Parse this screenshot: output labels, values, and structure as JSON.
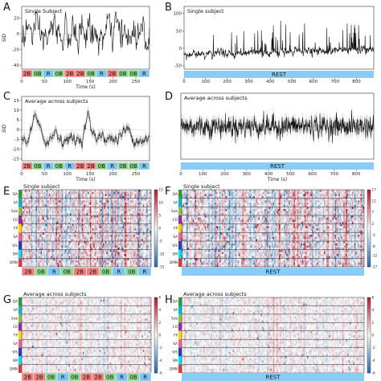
{
  "colors": {
    "2B": "#f08080",
    "0B": "#8fd68f",
    "R": "#7fc4f0",
    "rest": "#87cdf5",
    "line": "#111111",
    "band": "#b8b8b8"
  },
  "networks": [
    {
      "name": "DA",
      "color": "#2ca02c"
    },
    {
      "name": "VA",
      "color": "#00bcd4"
    },
    {
      "name": "Sub",
      "color": "#8bc34a"
    },
    {
      "name": "CO",
      "color": "#9c27b0"
    },
    {
      "name": "FP",
      "color": "#ffd600"
    },
    {
      "name": "SA",
      "color": "#f06292"
    },
    {
      "name": "VIS",
      "color": "#1e3fbf"
    },
    {
      "name": "SM",
      "color": "#00e5ff"
    },
    {
      "name": "DMN",
      "color": "#e53935"
    }
  ],
  "chart_data": [
    {
      "panel": "A",
      "type": "line",
      "title": "Single Subject",
      "xlabel": "Time (s)",
      "ylabel": "SID",
      "xlim": [
        0,
        280
      ],
      "ylim": [
        -45,
        35
      ],
      "xticks": [
        0,
        50,
        100,
        150,
        200,
        250
      ],
      "yticks": [
        -40,
        -20,
        0,
        20
      ],
      "blocks": [
        "2B",
        "0B",
        "R",
        "0B",
        "2B",
        "2B",
        "0B",
        "R",
        "2B",
        "0B",
        "0B",
        "R"
      ]
    },
    {
      "panel": "B",
      "type": "line",
      "title": "Single subject",
      "xlabel": "",
      "ylabel": "",
      "xlim": [
        0,
        880
      ],
      "ylim": [
        -60,
        120
      ],
      "xticks": [
        0,
        100,
        200,
        300,
        400,
        500,
        600,
        700,
        800
      ],
      "yticks": [
        -50,
        0,
        50,
        100
      ],
      "rest_label": "REST"
    },
    {
      "panel": "C",
      "type": "line",
      "title": "Average across subjects",
      "xlabel": "Time (s)",
      "ylabel": "SID",
      "xlim": [
        0,
        280
      ],
      "ylim": [
        -16,
        17
      ],
      "xticks": [
        0,
        50,
        100,
        150,
        200,
        250
      ],
      "yticks": [
        -15,
        -10,
        -5,
        0,
        5,
        10,
        15
      ],
      "blocks": [
        "2B",
        "0B",
        "R",
        "0B",
        "R",
        "2B",
        "2B",
        "0B",
        "R",
        "0B",
        "0B",
        "R"
      ]
    },
    {
      "panel": "D",
      "type": "line",
      "title": "Average across subjects",
      "xlabel": "Time (s)",
      "ylabel": "",
      "xlim": [
        0,
        880
      ],
      "ylim": [
        -45,
        45
      ],
      "xticks": [
        0,
        100,
        200,
        300,
        400,
        500,
        600,
        700,
        800
      ],
      "yticks": [],
      "rest_label": "REST"
    },
    {
      "panel": "E",
      "type": "heatmap",
      "title": "Single subject",
      "color_range": [
        -15,
        15
      ],
      "colorbar_ticks": [
        15,
        10,
        5,
        0,
        -5,
        -10,
        -15
      ],
      "blocks": [
        "2B",
        "0B",
        "R",
        "0B",
        "2B",
        "2B",
        "0B",
        "R",
        "0B",
        "R"
      ]
    },
    {
      "panel": "F",
      "type": "heatmap",
      "title": "Single subject",
      "color_range": [
        -17,
        17
      ],
      "colorbar_ticks": [
        17,
        12,
        7,
        2,
        -3,
        -8,
        -12,
        -17
      ],
      "rest_label": "REST"
    },
    {
      "panel": "G",
      "type": "heatmap",
      "title": "Average across subjects",
      "color_range": [
        -6,
        6
      ],
      "colorbar_ticks": [
        6,
        4,
        2,
        0,
        -2,
        -4,
        -6
      ],
      "blocks": [
        "2B",
        "2B",
        "0B",
        "R",
        "0B",
        "2B",
        "2B",
        "0B",
        "R",
        "0B",
        "R"
      ]
    },
    {
      "panel": "H",
      "type": "heatmap",
      "title": "Average across subjects",
      "color_range": [
        -6,
        6
      ],
      "colorbar_ticks": [
        6,
        4,
        2,
        0,
        -2,
        -4,
        -6
      ],
      "rest_label": "REST"
    }
  ]
}
